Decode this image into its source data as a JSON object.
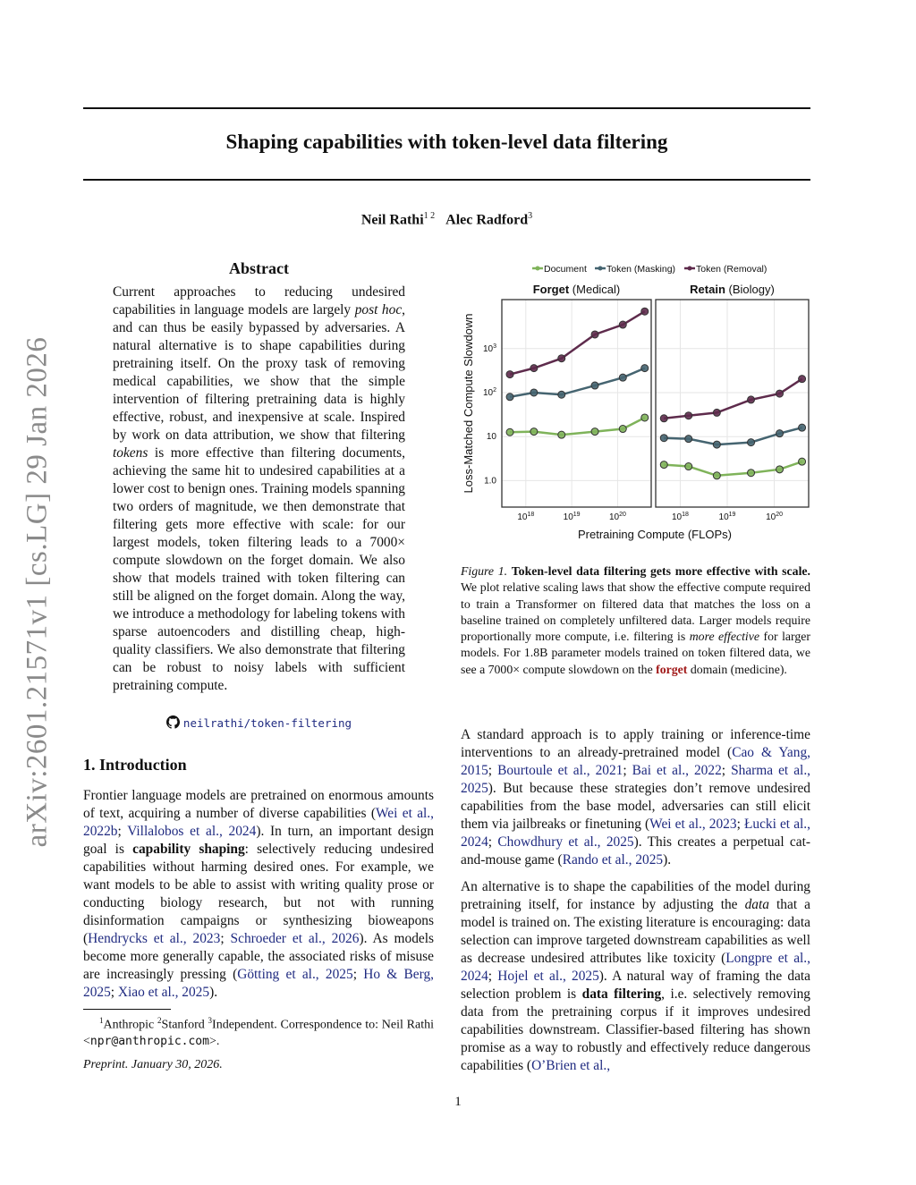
{
  "arxiv_stamp": "arXiv:2601.21571v1  [cs.LG]  29 Jan 2026",
  "title": "Shaping capabilities with token-level data filtering",
  "authors": [
    {
      "name": "Neil Rathi",
      "aff": "1 2"
    },
    {
      "name": "Alec Radford",
      "aff": "3"
    }
  ],
  "abstract": {
    "heading": "Abstract",
    "segments": [
      {
        "t": "Current approaches to reducing undesired capabilities in language models are largely "
      },
      {
        "t": "post hoc",
        "s": "i"
      },
      {
        "t": ", and can thus be easily bypassed by adversaries. A natural alternative is to shape capabilities during pretraining itself. On the proxy task of removing medical capabilities, we show that the simple intervention of filtering pretraining data is highly effective, robust, and inexpensive at scale. Inspired by work on data attribution, we show that filtering "
      },
      {
        "t": "tokens",
        "s": "i"
      },
      {
        "t": " is more effective than filtering documents, achieving the same hit to undesired capabilities at a lower cost to benign ones. Training models spanning two orders of magnitude, we then demonstrate that filtering gets more effective with scale: for our largest models, token filtering leads to a 7000× compute slowdown on the forget domain. We also show that models trained with token filtering can still be aligned on the forget domain. Along the way, we introduce a methodology for labeling tokens with sparse autoencoders and distilling cheap, high-quality classifiers. We also demonstrate that filtering can be robust to noisy labels with sufficient pretraining compute."
      }
    ]
  },
  "repo": {
    "icon": "github-icon",
    "label": "neilrathi/token-filtering"
  },
  "intro": {
    "heading": "1. Introduction",
    "segments": [
      {
        "t": "Frontier language models are pretrained on enormous amounts of text, acquiring a number of diverse capabilities ("
      },
      {
        "t": "Wei et al., 2022b",
        "s": "link"
      },
      {
        "t": "; "
      },
      {
        "t": "Villalobos et al., 2024",
        "s": "link"
      },
      {
        "t": "). In turn, an important design goal is "
      },
      {
        "t": "capability shaping",
        "s": "b"
      },
      {
        "t": ": selectively reducing undesired capabilities without harming desired ones. For example, we want models to be able to assist with writing quality prose or conducting biology research, but not with running disinformation campaigns or synthesizing bioweapons ("
      },
      {
        "t": "Hendrycks et al., 2023",
        "s": "link"
      },
      {
        "t": "; "
      },
      {
        "t": "Schroeder et al., 2026",
        "s": "link"
      },
      {
        "t": "). As models become more generally capable, the associated risks of misuse are increasingly pressing ("
      },
      {
        "t": "Götting et al., 2025",
        "s": "link"
      },
      {
        "t": "; "
      },
      {
        "t": "Ho & Berg, 2025",
        "s": "link"
      },
      {
        "t": "; "
      },
      {
        "t": "Xiao et al., 2025",
        "s": "link"
      },
      {
        "t": ")."
      }
    ]
  },
  "footnote": {
    "segments": [
      {
        "t": "1",
        "s": "sup"
      },
      {
        "t": "Anthropic "
      },
      {
        "t": "2",
        "s": "sup"
      },
      {
        "t": "Stanford "
      },
      {
        "t": "3",
        "s": "sup"
      },
      {
        "t": "Independent. Correspondence to: Neil Rathi <"
      },
      {
        "t": "npr@anthropic.com",
        "s": "mono"
      },
      {
        "t": ">."
      }
    ]
  },
  "preprint": "Preprint. January 30, 2026.",
  "caption": {
    "segments": [
      {
        "t": "Figure 1. ",
        "s": "i"
      },
      {
        "t": "Token-level data filtering gets more effective with scale.",
        "s": "b"
      },
      {
        "t": " We plot relative scaling laws that show the effective compute required to train a Transformer on filtered data that matches the loss on a baseline trained on completely unfiltered data. Larger models require proportionally more compute, i.e. filtering is "
      },
      {
        "t": "more effective",
        "s": "i"
      },
      {
        "t": " for larger models. For 1.8B parameter models trained on token filtered data, we see a 7000× compute slowdown on the "
      },
      {
        "t": "forget",
        "s": "red"
      },
      {
        "t": " domain (medicine)."
      }
    ]
  },
  "right_paragraphs": [
    {
      "segments": [
        {
          "t": "A standard approach is to apply training or inference-time interventions to an already-pretrained model ("
        },
        {
          "t": "Cao & Yang, 2015",
          "s": "link"
        },
        {
          "t": "; "
        },
        {
          "t": "Bourtoule et al., 2021",
          "s": "link"
        },
        {
          "t": "; "
        },
        {
          "t": "Bai et al., 2022",
          "s": "link"
        },
        {
          "t": "; "
        },
        {
          "t": "Sharma et al., 2025",
          "s": "link"
        },
        {
          "t": "). But because these strategies don’t remove undesired capabilities from the base model, adversaries can still elicit them via jailbreaks or finetuning ("
        },
        {
          "t": "Wei et al., 2023",
          "s": "link"
        },
        {
          "t": "; "
        },
        {
          "t": "Łucki et al., 2024",
          "s": "link"
        },
        {
          "t": "; "
        },
        {
          "t": "Chowdhury et al., 2025",
          "s": "link"
        },
        {
          "t": "). This creates a perpetual cat-and-mouse game ("
        },
        {
          "t": "Rando et al., 2025",
          "s": "link"
        },
        {
          "t": ")."
        }
      ]
    },
    {
      "segments": [
        {
          "t": "An alternative is to shape the capabilities of the model during pretraining itself, for instance by adjusting the "
        },
        {
          "t": "data",
          "s": "i"
        },
        {
          "t": " that a model is trained on. The existing literature is encouraging: data selection can improve targeted downstream capabilities as well as decrease undesired attributes like toxicity ("
        },
        {
          "t": "Longpre et al., 2024",
          "s": "link"
        },
        {
          "t": "; "
        },
        {
          "t": "Hojel et al., 2025",
          "s": "link"
        },
        {
          "t": "). A natural way of framing the data selection problem is "
        },
        {
          "t": "data filtering",
          "s": "b"
        },
        {
          "t": ", i.e. selectively removing data from the pretraining corpus if it improves undesired capabilities downstream. Classifier-based filtering has shown promise as a way to robustly and effectively reduce dangerous capabilities ("
        },
        {
          "t": "O’Brien et al.,",
          "s": "link"
        }
      ]
    }
  ],
  "page_number": "1",
  "chart_data": {
    "type": "line",
    "xlabel": "Pretraining Compute (FLOPs)",
    "ylabel": "Loss-Matched Compute Slowdown",
    "xscale": "log",
    "yscale": "log",
    "xlim": [
      3e+17,
      5.4e+20
    ],
    "ylim": [
      0.25,
      13000
    ],
    "xticks": [
      {
        "v": 1e+18,
        "label": "10^18"
      },
      {
        "v": 1e+19,
        "label": "10^19"
      },
      {
        "v": 1e+20,
        "label": "10^20"
      }
    ],
    "yticks": [
      {
        "v": 1,
        "label": "1.0"
      },
      {
        "v": 10,
        "label": "10"
      },
      {
        "v": 100,
        "label": "10^2"
      },
      {
        "v": 1000,
        "label": "10^3"
      }
    ],
    "grid": true,
    "legend_position": "top",
    "legend": [
      "Document",
      "Token (Masking)",
      "Token (Removal)"
    ],
    "colors": {
      "Document": "#7fb35a",
      "Token (Masking)": "#456470",
      "Token (Removal)": "#5e2b4c"
    },
    "x": [
      4.5e+17,
      1.5e+18,
      6e+18,
      3.2e+19,
      1.3e+20,
      3.9e+20
    ],
    "panels": [
      {
        "title_bold": "Forget",
        "title_rest": " (Medical)",
        "series": [
          {
            "name": "Document",
            "values": [
              12.6,
              13,
              11,
              13,
              15,
              27
            ]
          },
          {
            "name": "Token (Masking)",
            "values": [
              80,
              100,
              90,
              145,
              220,
              360
            ]
          },
          {
            "name": "Token (Removal)",
            "values": [
              260,
              360,
              600,
              2100,
              3500,
              7000
            ]
          }
        ]
      },
      {
        "title_bold": "Retain",
        "title_rest": " (Biology)",
        "series": [
          {
            "name": "Document",
            "values": [
              2.3,
              2.1,
              1.3,
              1.5,
              1.8,
              2.7
            ]
          },
          {
            "name": "Token (Masking)",
            "values": [
              9.3,
              8.9,
              6.6,
              7.4,
              11.8,
              16
            ]
          },
          {
            "name": "Token (Removal)",
            "values": [
              26,
              30,
              35,
              69,
              95,
              205
            ]
          }
        ]
      }
    ]
  }
}
